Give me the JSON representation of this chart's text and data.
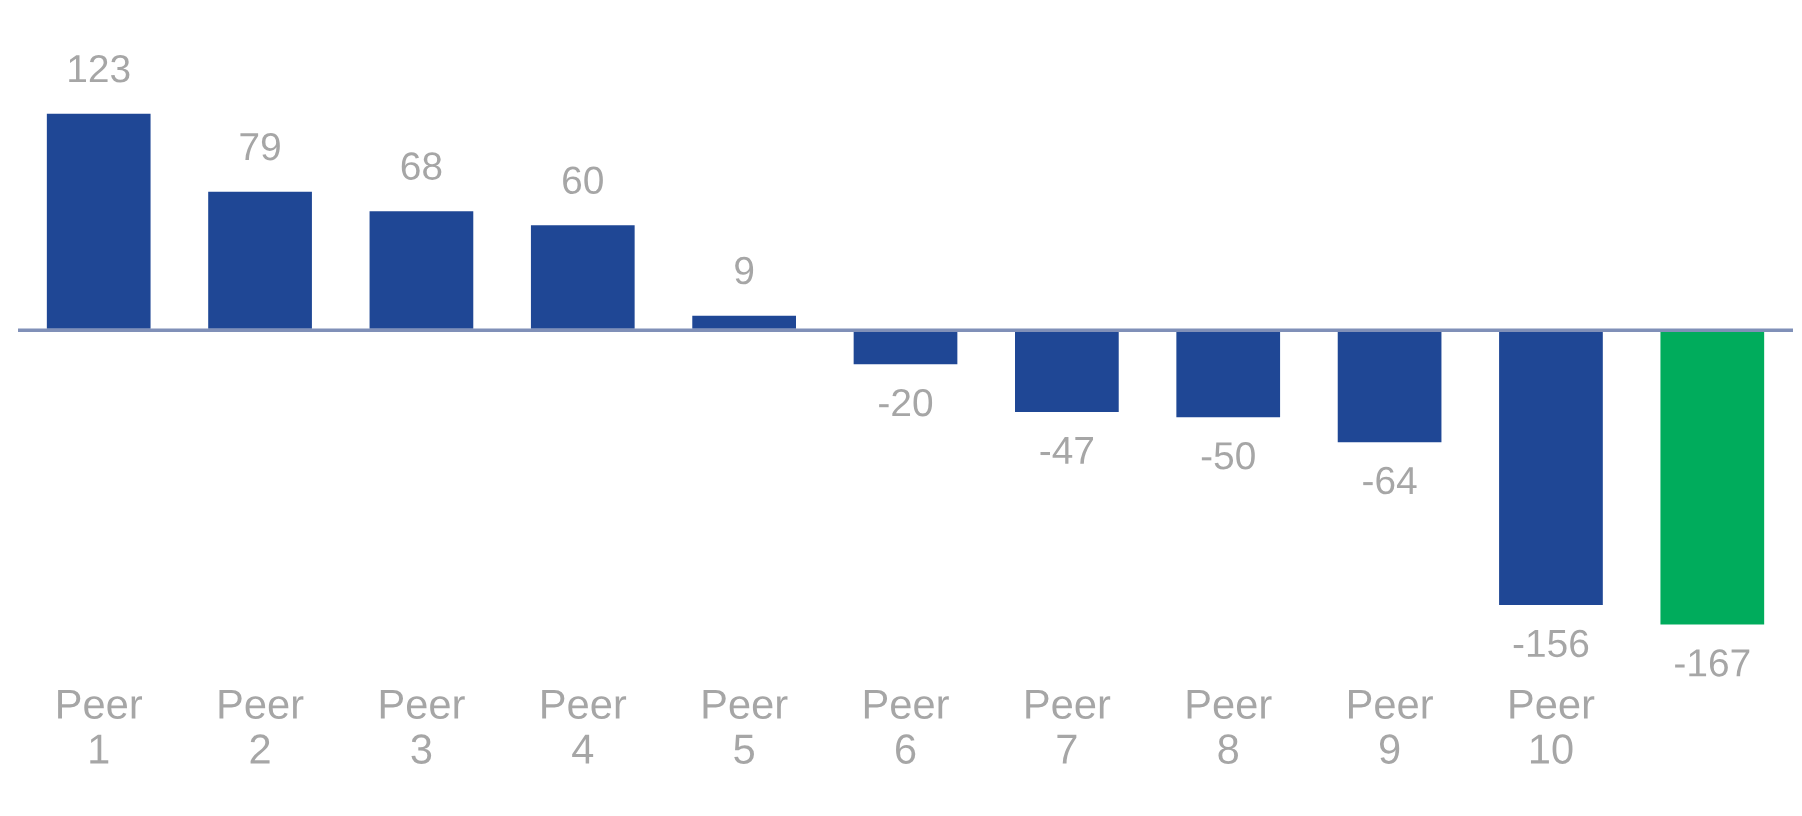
{
  "chart_data": {
    "type": "bar",
    "categories": [
      "Peer\n1",
      "Peer\n2",
      "Peer\n3",
      "Peer\n4",
      "Peer\n5",
      "Peer\n6",
      "Peer\n7",
      "Peer\n8",
      "Peer\n9",
      "Peer\n10",
      null
    ],
    "values": [
      123,
      79,
      68,
      60,
      9,
      -20,
      -47,
      -50,
      -64,
      -156,
      -167
    ],
    "colors": [
      "#1f4795",
      "#1f4795",
      "#1f4795",
      "#1f4795",
      "#1f4795",
      "#1f4795",
      "#1f4795",
      "#1f4795",
      "#1f4795",
      "#1f4795",
      "#00ac5c"
    ],
    "ref_lines": [
      {
        "axis": "y",
        "value": 0,
        "color": "#8090b8"
      }
    ],
    "data_labels": true,
    "grid": false,
    "legend": false
  }
}
